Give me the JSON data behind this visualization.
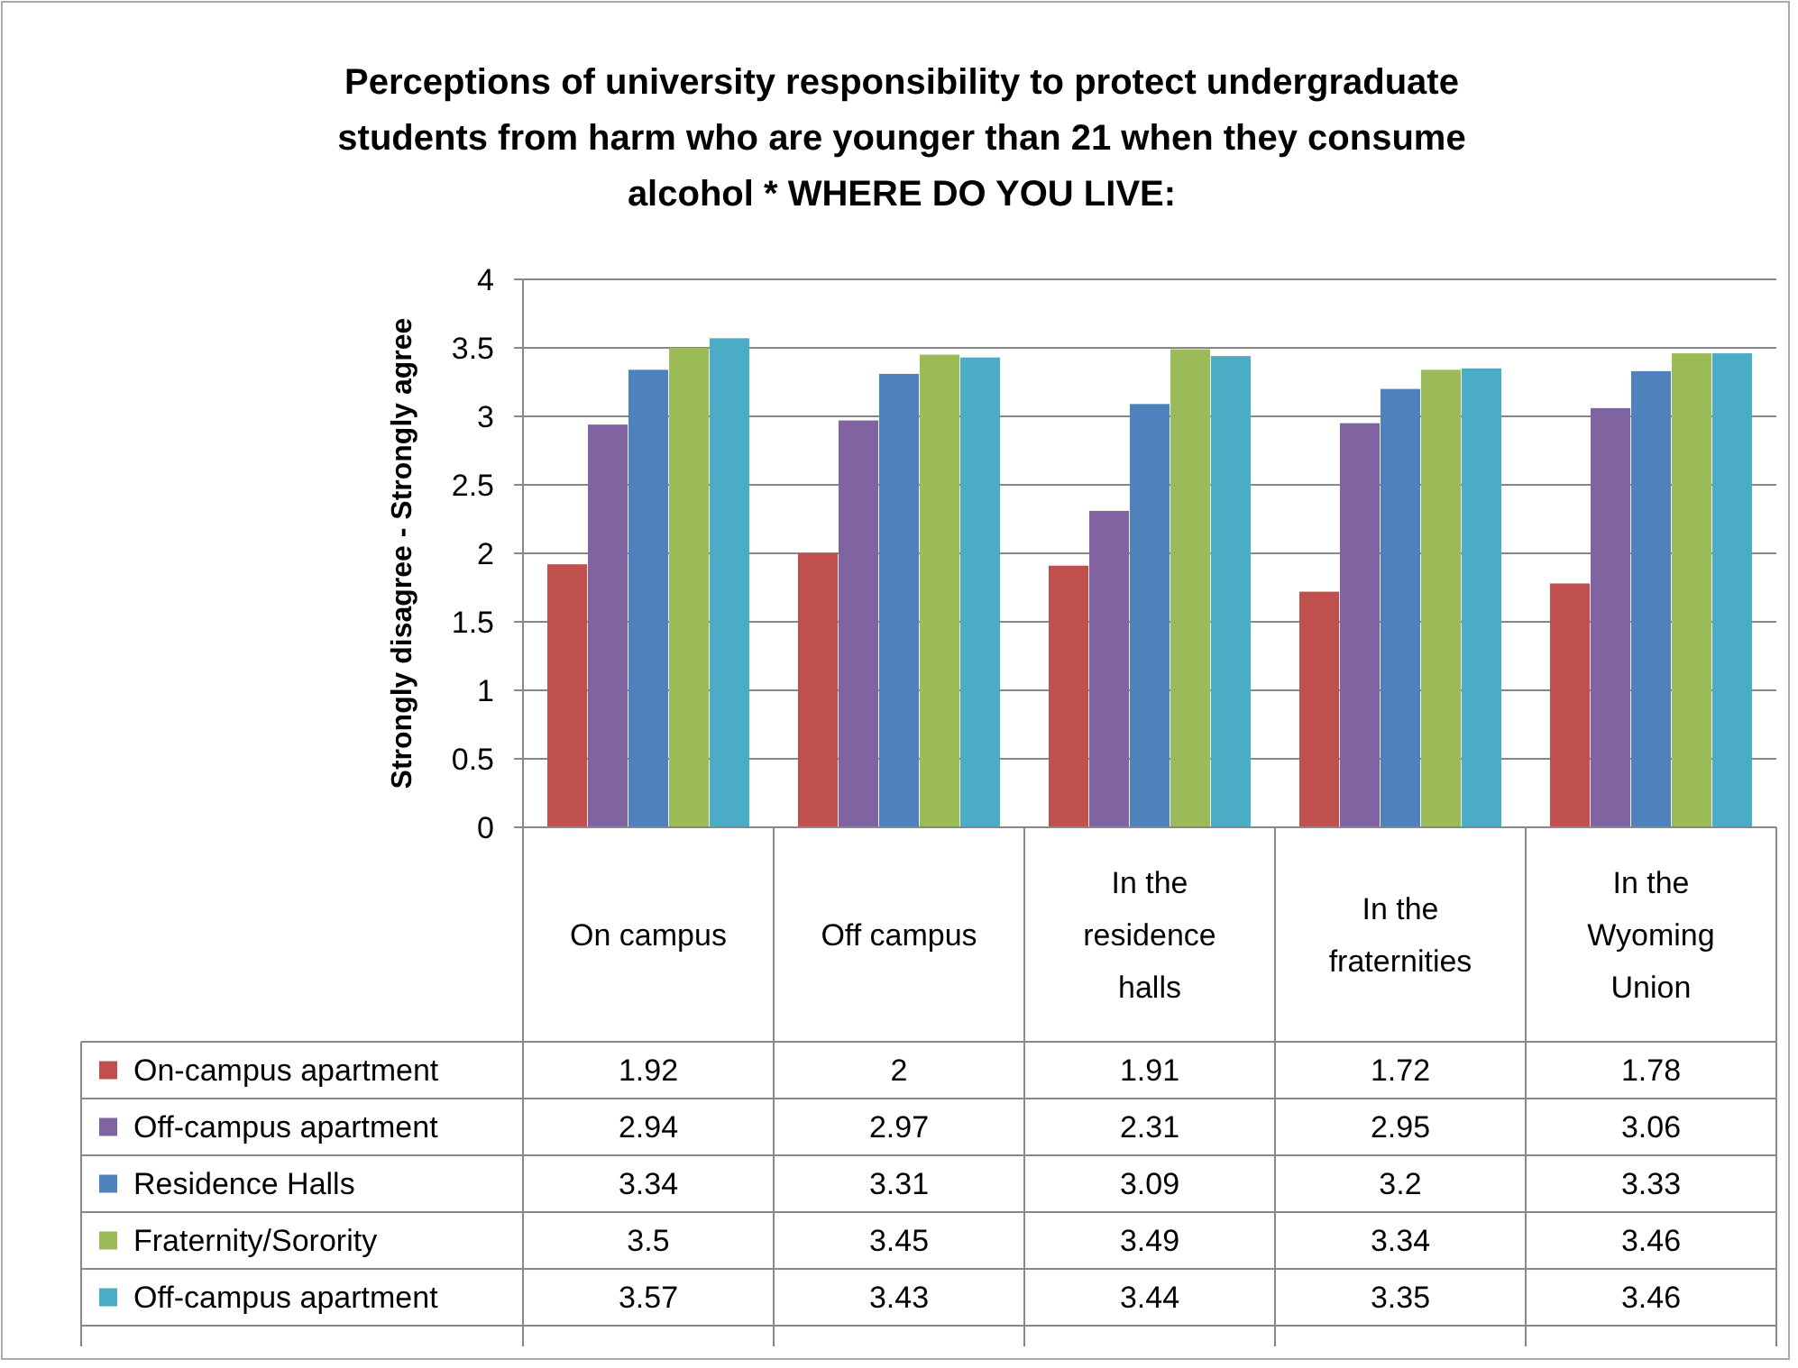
{
  "chart_data": {
    "type": "bar",
    "title": "Perceptions of university responsibility to protect undergraduate students from harm who are younger than 21 when they consume alcohol * WHERE DO YOU LIVE:",
    "ylabel": "Strongly disagree - Strongly agree",
    "categories": [
      "On campus",
      "Off campus",
      "In the residence halls",
      "In the fraternities",
      "In the Wyoming Union"
    ],
    "series": [
      {
        "name": "On-campus apartment",
        "color": "#c0504d",
        "values": [
          1.92,
          2,
          1.91,
          1.72,
          1.78
        ]
      },
      {
        "name": "Off-campus apartment",
        "color": "#8064a2",
        "values": [
          2.94,
          2.97,
          2.31,
          2.95,
          3.06
        ]
      },
      {
        "name": "Residence Halls",
        "color": "#4f81bd",
        "values": [
          3.34,
          3.31,
          3.09,
          3.2,
          3.33
        ]
      },
      {
        "name": "Fraternity/Sorority",
        "color": "#9bbb59",
        "values": [
          3.5,
          3.45,
          3.49,
          3.34,
          3.46
        ]
      },
      {
        "name": "Off-campus apartment",
        "color": "#4bacc6",
        "values": [
          3.57,
          3.43,
          3.44,
          3.35,
          3.46
        ]
      }
    ],
    "ylim": [
      0,
      4
    ],
    "yticks": [
      0,
      0.5,
      1,
      1.5,
      2,
      2.5,
      3,
      3.5,
      4
    ],
    "grid": "y",
    "legend": "bottom",
    "data_labels": true
  }
}
